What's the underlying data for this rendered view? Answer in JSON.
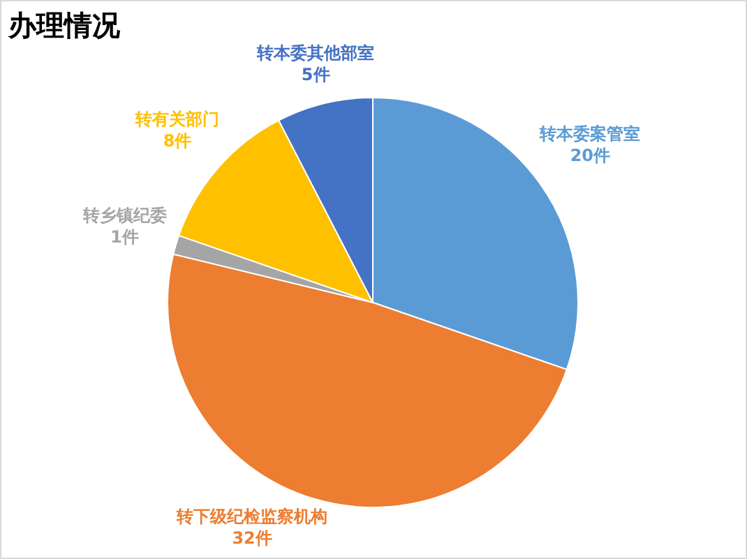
{
  "chart_data": {
    "type": "pie",
    "title": "办理情况",
    "categories": [
      "转本委案管室",
      "转下级纪检监察机构",
      "转乡镇纪委",
      "转有关部门",
      "转本委其他部室"
    ],
    "values": [
      20,
      32,
      1,
      8,
      5
    ],
    "value_labels": [
      "20件",
      "32件",
      "1件",
      "8件",
      "5件"
    ],
    "colors": [
      "#5b9bd5",
      "#ed7d31",
      "#a5a5a5",
      "#ffc000",
      "#4472c4"
    ]
  }
}
